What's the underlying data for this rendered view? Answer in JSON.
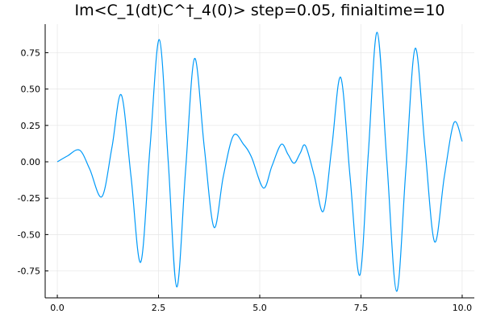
{
  "chart_data": {
    "type": "line",
    "title": "Im<C_1(dt)C^†_4(0)> step=0.05, finialtime=10",
    "x": [
      0,
      0.25,
      0.55,
      0.8,
      1.1,
      1.35,
      1.58,
      1.82,
      2.06,
      2.29,
      2.52,
      2.74,
      2.95,
      3.17,
      3.39,
      3.63,
      3.87,
      4.1,
      4.35,
      4.6,
      4.8,
      5.09,
      5.3,
      5.53,
      5.7,
      5.85,
      6.0,
      6.13,
      6.35,
      6.57,
      6.78,
      7.0,
      7.23,
      7.47,
      7.68,
      7.9,
      8.14,
      8.38,
      8.61,
      8.84,
      9.08,
      9.32,
      9.56,
      9.8,
      10.0
    ],
    "series": [
      {
        "color": "#009af9",
        "values": [
          0,
          0.04,
          0.08,
          -0.05,
          -0.24,
          0.1,
          0.46,
          -0.1,
          -0.69,
          0.1,
          0.84,
          0,
          -0.86,
          -0.05,
          0.71,
          0.1,
          -0.45,
          -0.1,
          0.18,
          0.12,
          0.03,
          -0.18,
          -0.03,
          0.12,
          0.05,
          -0.01,
          0.06,
          0.11,
          -0.1,
          -0.34,
          0.1,
          0.58,
          -0.1,
          -0.78,
          0.05,
          0.89,
          0,
          -0.89,
          -0.05,
          0.78,
          0.1,
          -0.55,
          -0.1,
          0.27,
          0.14
        ]
      }
    ],
    "xlim": [
      -0.3,
      10.3
    ],
    "xticks": [
      {
        "value": 0,
        "label": "0.0"
      },
      {
        "value": 2.5,
        "label": "2.5"
      },
      {
        "value": 5,
        "label": "5.0"
      },
      {
        "value": 7.5,
        "label": "7.5"
      },
      {
        "value": 10,
        "label": "10.0"
      }
    ],
    "ylim": [
      -0.935,
      0.946
    ],
    "yticks": [
      -0.75,
      {
        "value": -0.5,
        "label": "-0.50"
      },
      {
        "value": -0.25,
        "label": "-0.25"
      },
      {
        "value": 0,
        "label": "0.00"
      },
      {
        "value": 0.25,
        "label": "0.25"
      },
      {
        "value": 0.5,
        "label": "0.50"
      },
      0.75
    ],
    "grid": true
  }
}
